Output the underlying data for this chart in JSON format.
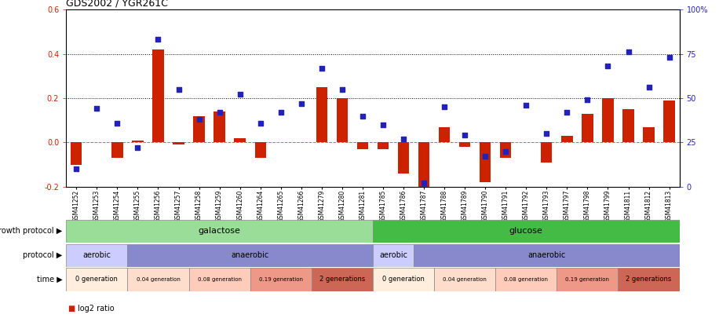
{
  "title": "GDS2002 / YGR261C",
  "samples": [
    "GSM41252",
    "GSM41253",
    "GSM41254",
    "GSM41255",
    "GSM41256",
    "GSM41257",
    "GSM41258",
    "GSM41259",
    "GSM41260",
    "GSM41264",
    "GSM41265",
    "GSM41266",
    "GSM41279",
    "GSM41280",
    "GSM41281",
    "GSM41785",
    "GSM41786",
    "GSM41787",
    "GSM41788",
    "GSM41789",
    "GSM41790",
    "GSM41791",
    "GSM41792",
    "GSM41793",
    "GSM41797",
    "GSM41798",
    "GSM41799",
    "GSM41811",
    "GSM41812",
    "GSM41813"
  ],
  "log2_ratio": [
    -0.1,
    0.0,
    -0.07,
    0.01,
    0.42,
    -0.01,
    0.12,
    0.14,
    0.02,
    -0.07,
    0.0,
    0.0,
    0.25,
    0.2,
    -0.03,
    -0.03,
    -0.14,
    -0.21,
    0.07,
    -0.02,
    -0.18,
    -0.07,
    0.0,
    -0.09,
    0.03,
    0.13,
    0.2,
    0.15,
    0.07,
    0.19
  ],
  "percentile": [
    10,
    44,
    36,
    22,
    83,
    55,
    38,
    42,
    52,
    36,
    42,
    47,
    67,
    55,
    40,
    35,
    27,
    2,
    45,
    29,
    17,
    20,
    46,
    30,
    42,
    49,
    68,
    76,
    56,
    73
  ],
  "ylim_left": [
    -0.2,
    0.6
  ],
  "ylim_right": [
    0,
    100
  ],
  "yticks_left": [
    -0.2,
    0.0,
    0.2,
    0.4,
    0.6
  ],
  "yticks_right": [
    0,
    25,
    50,
    75,
    100
  ],
  "bar_color": "#cc2200",
  "dot_color": "#2222bb",
  "zero_line_color": "#cc2200",
  "growth_protocol": [
    {
      "start": 0,
      "end": 15,
      "color": "#99dd99",
      "label": "galactose"
    },
    {
      "start": 15,
      "end": 30,
      "color": "#44bb44",
      "label": "glucose"
    }
  ],
  "protocol": [
    {
      "start": 0,
      "end": 3,
      "color": "#ccccff",
      "label": "aerobic"
    },
    {
      "start": 3,
      "end": 15,
      "color": "#8888cc",
      "label": "anaerobic"
    },
    {
      "start": 15,
      "end": 17,
      "color": "#ccccff",
      "label": "aerobic"
    },
    {
      "start": 17,
      "end": 30,
      "color": "#8888cc",
      "label": "anaerobic"
    }
  ],
  "time_segments": [
    {
      "start": 0,
      "end": 3,
      "color": "#ffeedd",
      "label": "0 generation"
    },
    {
      "start": 3,
      "end": 6,
      "color": "#ffddcc",
      "label": "0.04 generation"
    },
    {
      "start": 6,
      "end": 9,
      "color": "#ffccbb",
      "label": "0.08 generation"
    },
    {
      "start": 9,
      "end": 12,
      "color": "#ee9988",
      "label": "0.19 generation"
    },
    {
      "start": 12,
      "end": 15,
      "color": "#cc6655",
      "label": "2 generations"
    },
    {
      "start": 15,
      "end": 18,
      "color": "#ffeedd",
      "label": "0 generation"
    },
    {
      "start": 18,
      "end": 21,
      "color": "#ffddcc",
      "label": "0.04 generation"
    },
    {
      "start": 21,
      "end": 24,
      "color": "#ffccbb",
      "label": "0.08 generation"
    },
    {
      "start": 24,
      "end": 27,
      "color": "#ee9988",
      "label": "0.19 generation"
    },
    {
      "start": 27,
      "end": 30,
      "color": "#cc6655",
      "label": "2 generations"
    }
  ]
}
